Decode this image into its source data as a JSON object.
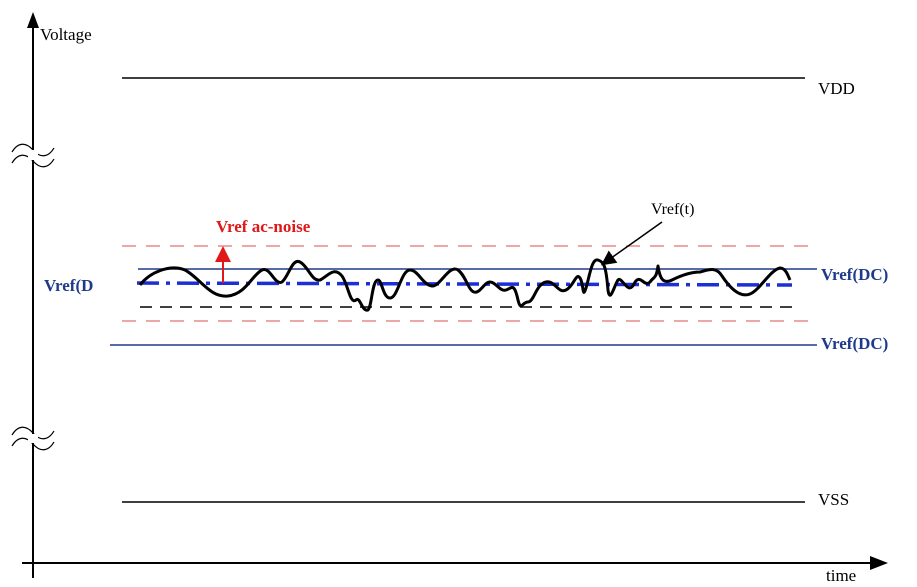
{
  "labels": {
    "y_axis": "Voltage",
    "x_axis": "time",
    "vdd": "VDD",
    "vss": "VSS",
    "vref_dc_left": "Vref(D",
    "vref_dc_upper": "Vref(DC)",
    "vref_dc_lower": "Vref(DC)",
    "ac_noise": "Vref ac-noise",
    "vref_t": "Vref(t)"
  },
  "colors": {
    "axis": "#000000",
    "rail": "#000000",
    "vref_dc": "#1f3a8a",
    "dc_dashed": "#1b2fd6",
    "noise_limit": "#e88a8a",
    "noise_arrow": "#e01818",
    "signal": "#000000"
  }
}
